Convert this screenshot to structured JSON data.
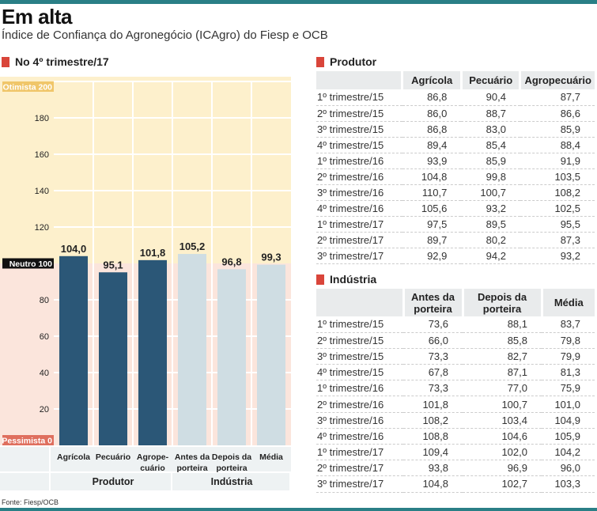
{
  "title": "Em alta",
  "subtitle": "Índice de Confiança do Agronegócio (ICAgro) do Fiesp e OCB",
  "chart_section": "No 4º trimestre/17",
  "source": "Fonte: Fiesp/OCB",
  "colors": {
    "accent": "#2a7f86",
    "produtor_bar": "#2b5777",
    "industria_bar": "#cfdde3",
    "optimistic_bg": "#fdf0cc",
    "pessimistic_bg": "#fbe5dc",
    "marker": "#d9453a"
  },
  "chart_data": {
    "type": "bar",
    "categories": [
      "Agrícola",
      "Pecuário",
      "Agrope-\ncuário",
      "Antes da\nporteira",
      "Depois da\nporteira",
      "Média"
    ],
    "groups": [
      {
        "label": "Produtor",
        "categories": [
          0,
          1,
          2
        ]
      },
      {
        "label": "Indústria",
        "categories": [
          3,
          4,
          5
        ]
      }
    ],
    "values": [
      104.0,
      95.1,
      101.8,
      105.2,
      96.8,
      99.3
    ],
    "value_labels": [
      "104,0",
      "95,1",
      "101,8",
      "105,2",
      "96,8",
      "99,3"
    ],
    "ylim": [
      0,
      200
    ],
    "yticks": [
      20,
      40,
      60,
      80,
      120,
      140,
      160,
      180
    ],
    "special_ticks": [
      {
        "label": "Otimista 200",
        "value": 200
      },
      {
        "label": "Neutro 100",
        "value": 100
      },
      {
        "label": "Pessimista 0",
        "value": 0
      }
    ],
    "grid": true
  },
  "produtor": {
    "title": "Produtor",
    "columns": [
      "",
      "Agrícola",
      "Pecuário",
      "Agropecuário"
    ],
    "rows": [
      [
        "1º trimestre/15",
        "86,8",
        "90,4",
        "87,7"
      ],
      [
        "2º trimestre/15",
        "86,0",
        "88,7",
        "86,6"
      ],
      [
        "3º trimestre/15",
        "86,8",
        "83,0",
        "85,9"
      ],
      [
        "4º trimestre/15",
        "89,4",
        "85,4",
        "88,4"
      ],
      [
        "1º trimestre/16",
        "93,9",
        "85,9",
        "91,9"
      ],
      [
        "2º trimestre/16",
        "104,8",
        "99,8",
        "103,5"
      ],
      [
        "3º trimestre/16",
        "110,7",
        "100,7",
        "108,2"
      ],
      [
        "4º trimestre/16",
        "105,6",
        "93,2",
        "102,5"
      ],
      [
        "1º trimestre/17",
        "97,5",
        "89,5",
        "95,5"
      ],
      [
        "2º trimestre/17",
        "89,7",
        "80,2",
        "87,3"
      ],
      [
        "3º trimestre/17",
        "92,9",
        "94,2",
        "93,2"
      ]
    ]
  },
  "industria": {
    "title": "Indústria",
    "columns": [
      "",
      "Antes da porteira",
      "Depois da porteira",
      "Média"
    ],
    "rows": [
      [
        "1º trimestre/15",
        "73,6",
        "88,1",
        "83,7"
      ],
      [
        "2º trimestre/15",
        "66,0",
        "85,8",
        "79,8"
      ],
      [
        "3º trimestre/15",
        "73,3",
        "82,7",
        "79,9"
      ],
      [
        "4º trimestre/15",
        "67,8",
        "87,1",
        "81,3"
      ],
      [
        "1º trimestre/16",
        "73,3",
        "77,0",
        "75,9"
      ],
      [
        "2º trimestre/16",
        "101,8",
        "100,7",
        "101,0"
      ],
      [
        "3º trimestre/16",
        "108,2",
        "103,4",
        "104,9"
      ],
      [
        "4º trimestre/16",
        "108,8",
        "104,6",
        "105,9"
      ],
      [
        "1º trimestre/17",
        "109,4",
        "102,0",
        "104,2"
      ],
      [
        "2º trimestre/17",
        "93,8",
        "96,9",
        "96,0"
      ],
      [
        "3º trimestre/17",
        "104,8",
        "102,7",
        "103,3"
      ]
    ]
  }
}
